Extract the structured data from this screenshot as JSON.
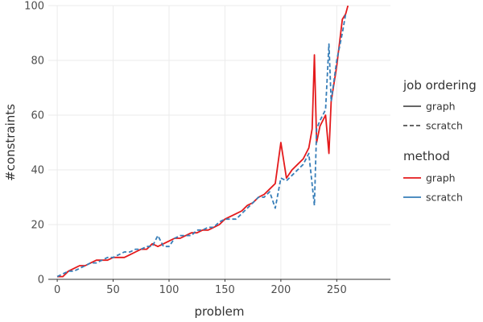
{
  "chart_data": {
    "type": "line",
    "xlabel": "problem",
    "ylabel": "#constraints",
    "xlim": [
      -8,
      298
    ],
    "ylim": [
      0,
      100
    ],
    "xticks": [
      0,
      50,
      100,
      150,
      200,
      250
    ],
    "yticks": [
      0,
      20,
      40,
      60,
      80,
      100
    ],
    "grid": true,
    "legend_position": "right",
    "legend": {
      "linetype_title": "job ordering",
      "linetype_entries": [
        {
          "label": "graph",
          "dash": "solid"
        },
        {
          "label": "scratch",
          "dash": "dashed"
        }
      ],
      "color_title": "method",
      "color_entries": [
        {
          "label": "graph",
          "color": "#e41a1c"
        },
        {
          "label": "scratch",
          "color": "#377eb8"
        }
      ]
    },
    "series": [
      {
        "job_ordering": "graph",
        "method": "graph",
        "color": "#e41a1c",
        "dash": "solid",
        "x": [
          0,
          5,
          10,
          15,
          20,
          25,
          30,
          35,
          40,
          45,
          50,
          55,
          60,
          65,
          70,
          75,
          80,
          85,
          90,
          95,
          100,
          105,
          110,
          115,
          120,
          125,
          130,
          135,
          140,
          145,
          150,
          155,
          160,
          165,
          170,
          175,
          180,
          185,
          190,
          195,
          200,
          205,
          210,
          215,
          220,
          225,
          228,
          230,
          232,
          235,
          240,
          243,
          245,
          250,
          255,
          258,
          260
        ],
        "y": [
          1,
          1,
          3,
          4,
          5,
          5,
          6,
          7,
          7,
          7,
          8,
          8,
          8,
          9,
          10,
          11,
          11,
          13,
          12,
          13,
          14,
          15,
          15,
          16,
          17,
          17,
          18,
          18,
          19,
          20,
          22,
          23,
          24,
          25,
          27,
          28,
          30,
          31,
          33,
          35,
          50,
          37,
          40,
          42,
          44,
          48,
          55,
          82,
          50,
          56,
          60,
          46,
          65,
          78,
          95,
          97,
          100
        ]
      },
      {
        "job_ordering": "scratch",
        "method": "scratch",
        "color": "#377eb8",
        "dash": "dashed",
        "x": [
          0,
          5,
          10,
          15,
          20,
          25,
          30,
          35,
          40,
          45,
          50,
          55,
          60,
          65,
          70,
          75,
          80,
          85,
          90,
          95,
          100,
          105,
          110,
          115,
          120,
          125,
          130,
          135,
          140,
          145,
          150,
          155,
          160,
          165,
          170,
          175,
          180,
          185,
          190,
          195,
          200,
          205,
          210,
          215,
          220,
          225,
          230,
          232,
          235,
          240,
          243,
          245,
          250,
          255,
          258
        ],
        "y": [
          1,
          2,
          3,
          3,
          4,
          5,
          6,
          6,
          7,
          8,
          8,
          9,
          10,
          10,
          11,
          11,
          12,
          12,
          16,
          12,
          12,
          15,
          16,
          16,
          16,
          18,
          18,
          19,
          19,
          21,
          22,
          22,
          22,
          24,
          26,
          28,
          30,
          30,
          32,
          26,
          37,
          36,
          38,
          40,
          42,
          46,
          27,
          55,
          58,
          62,
          86,
          65,
          80,
          90,
          97
        ]
      }
    ]
  }
}
